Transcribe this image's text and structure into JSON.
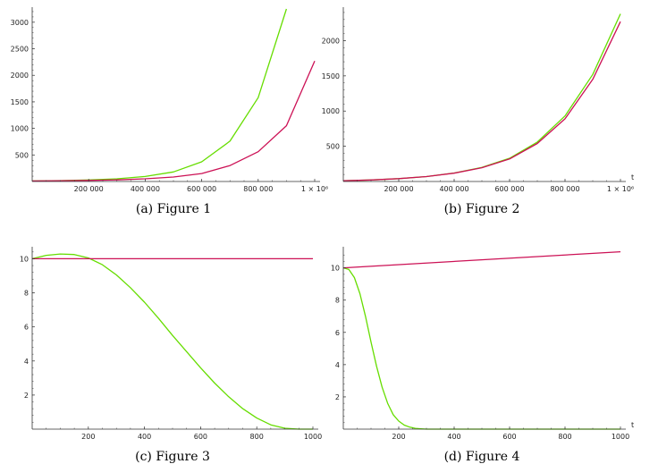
{
  "chart_data": [
    {
      "type": "line",
      "caption": "(a) Figure 1",
      "xlabel": "",
      "x_tick_labels": [
        "200 000",
        "400 000",
        "600 000",
        "800 000",
        "1 × 10⁶"
      ],
      "x_ticks": [
        200000,
        400000,
        600000,
        800000,
        1000000
      ],
      "y_ticks": [
        500,
        1000,
        1500,
        2000,
        2500,
        3000
      ],
      "xlim": [
        0,
        1000000
      ],
      "ylim": [
        0,
        3250
      ],
      "series": [
        {
          "color": "#66dd00",
          "x": [
            0,
            100000,
            200000,
            300000,
            400000,
            500000,
            600000,
            700000,
            800000,
            900000
          ],
          "y": [
            10,
            17,
            29,
            51,
            95,
            180,
            370,
            760,
            1580,
            3250
          ]
        },
        {
          "color": "#cc1155",
          "x": [
            0,
            100000,
            200000,
            300000,
            400000,
            500000,
            600000,
            700000,
            800000,
            900000,
            1000000
          ],
          "y": [
            10,
            14,
            20,
            30,
            50,
            85,
            150,
            300,
            560,
            1050,
            2270
          ]
        }
      ]
    },
    {
      "type": "line",
      "caption": "(b) Figure 2",
      "xlabel": "t",
      "x_tick_labels": [
        "200 000",
        "400 000",
        "600 000",
        "800 000",
        "1 × 10⁶"
      ],
      "x_ticks": [
        200000,
        400000,
        600000,
        800000,
        1000000
      ],
      "y_ticks": [
        500,
        1000,
        1500,
        2000
      ],
      "xlim": [
        0,
        1000000
      ],
      "ylim": [
        0,
        2450
      ],
      "series": [
        {
          "color": "#66dd00",
          "x": [
            0,
            100000,
            200000,
            300000,
            400000,
            500000,
            600000,
            700000,
            800000,
            900000,
            1000000
          ],
          "y": [
            10,
            22,
            40,
            70,
            120,
            200,
            330,
            560,
            930,
            1520,
            2380
          ]
        },
        {
          "color": "#cc1155",
          "x": [
            0,
            100000,
            200000,
            300000,
            400000,
            500000,
            600000,
            700000,
            800000,
            900000,
            1000000
          ],
          "y": [
            10,
            22,
            40,
            70,
            118,
            195,
            320,
            540,
            890,
            1450,
            2270
          ]
        }
      ]
    },
    {
      "type": "line",
      "caption": "(c) Figure 3",
      "xlabel": "",
      "x_tick_labels": [
        "200",
        "400",
        "600",
        "800",
        "1000"
      ],
      "x_ticks": [
        200,
        400,
        600,
        800,
        1000
      ],
      "y_ticks": [
        2,
        4,
        6,
        8,
        10
      ],
      "xlim": [
        0,
        1000
      ],
      "ylim": [
        0,
        10.6
      ],
      "series": [
        {
          "color": "#66dd00",
          "x": [
            0,
            50,
            100,
            150,
            200,
            250,
            300,
            350,
            400,
            450,
            500,
            550,
            600,
            650,
            700,
            750,
            800,
            850,
            900,
            950,
            1000
          ],
          "y": [
            10.0,
            10.2,
            10.28,
            10.25,
            10.05,
            9.65,
            9.05,
            8.3,
            7.45,
            6.5,
            5.5,
            4.55,
            3.6,
            2.7,
            1.9,
            1.2,
            0.65,
            0.25,
            0.05,
            0.0,
            0.0
          ]
        },
        {
          "color": "#cc1155",
          "x": [
            0,
            1000
          ],
          "y": [
            10,
            10
          ]
        }
      ]
    },
    {
      "type": "line",
      "caption": "(d) Figure 4",
      "xlabel": "t",
      "x_tick_labels": [
        "200",
        "400",
        "600",
        "800",
        "1000"
      ],
      "x_ticks": [
        200,
        400,
        600,
        800,
        1000
      ],
      "y_ticks": [
        2,
        4,
        6,
        8,
        10
      ],
      "xlim": [
        0,
        1000
      ],
      "ylim": [
        0,
        11.2
      ],
      "series": [
        {
          "color": "#66dd00",
          "x": [
            0,
            20,
            40,
            60,
            80,
            100,
            120,
            140,
            160,
            180,
            200,
            220,
            240,
            260,
            280,
            300,
            350,
            400,
            1000
          ],
          "y": [
            10.0,
            9.9,
            9.4,
            8.4,
            7.0,
            5.4,
            3.9,
            2.6,
            1.6,
            0.9,
            0.5,
            0.25,
            0.12,
            0.05,
            0.02,
            0.0,
            0.0,
            0.0,
            0.0
          ]
        },
        {
          "color": "#cc1155",
          "x": [
            0,
            1000
          ],
          "y": [
            10.0,
            11.0
          ]
        }
      ]
    }
  ]
}
